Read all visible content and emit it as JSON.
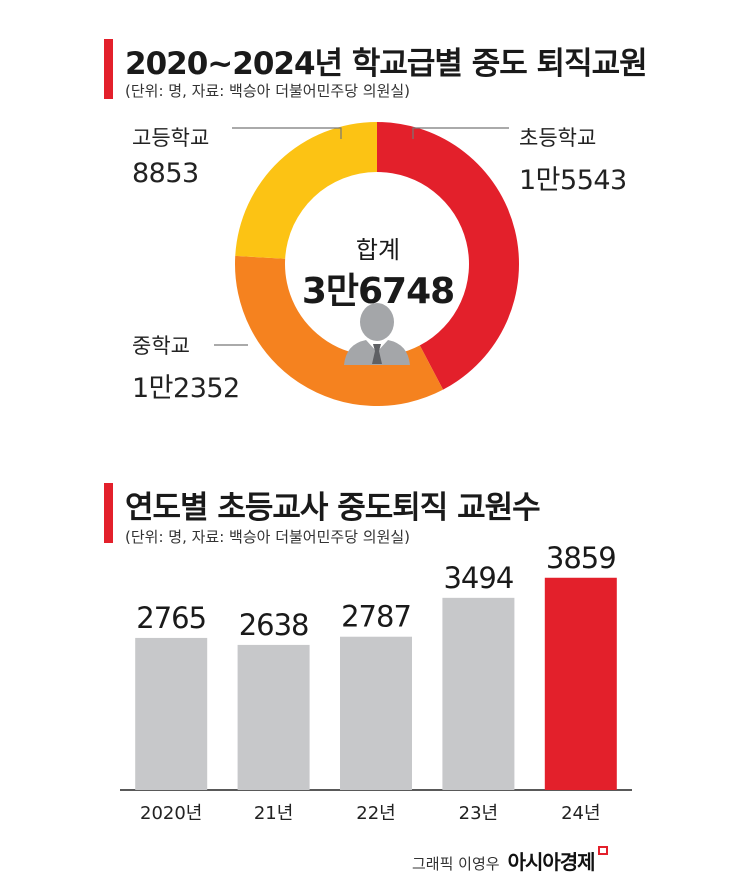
{
  "donut": {
    "title": "2020~2024년 학교급별 중도 퇴직교원",
    "unit_source": "(단위: 명, 자료: 백승아 더불어민주당 의원실)",
    "total_label": "합계",
    "total_value": "3만6748",
    "colors": {
      "초등학교": "#e3202b",
      "중학교": "#f5821f",
      "고등학교": "#fcc314"
    },
    "icon": "person-silhouette-icon"
  },
  "bar": {
    "title": "연도별 초등교사 중도퇴직 교원수",
    "unit_source": "(단위: 명, 자료: 백승아 더불어민주당 의원실)",
    "colors": {
      "default": "#c7c8ca",
      "highlight": "#e3202b"
    }
  },
  "credit": {
    "byline": "그래픽 이영우",
    "logo": "아시아경제"
  },
  "chart_data": [
    {
      "type": "pie",
      "title": "2020~2024년 학교급별 중도 퇴직교원",
      "categories": [
        "초등학교",
        "중학교",
        "고등학교"
      ],
      "values": [
        15543,
        12352,
        8853
      ],
      "value_labels": [
        "1만5543",
        "1만2352",
        "8853"
      ],
      "total": 36748
    },
    {
      "type": "bar",
      "title": "연도별 초등교사 중도퇴직 교원수",
      "categories": [
        "2020년",
        "21년",
        "22년",
        "23년",
        "24년"
      ],
      "values": [
        2765,
        2638,
        2787,
        3494,
        3859
      ],
      "ylim": [
        0,
        4000
      ],
      "highlight_index": 4
    }
  ]
}
